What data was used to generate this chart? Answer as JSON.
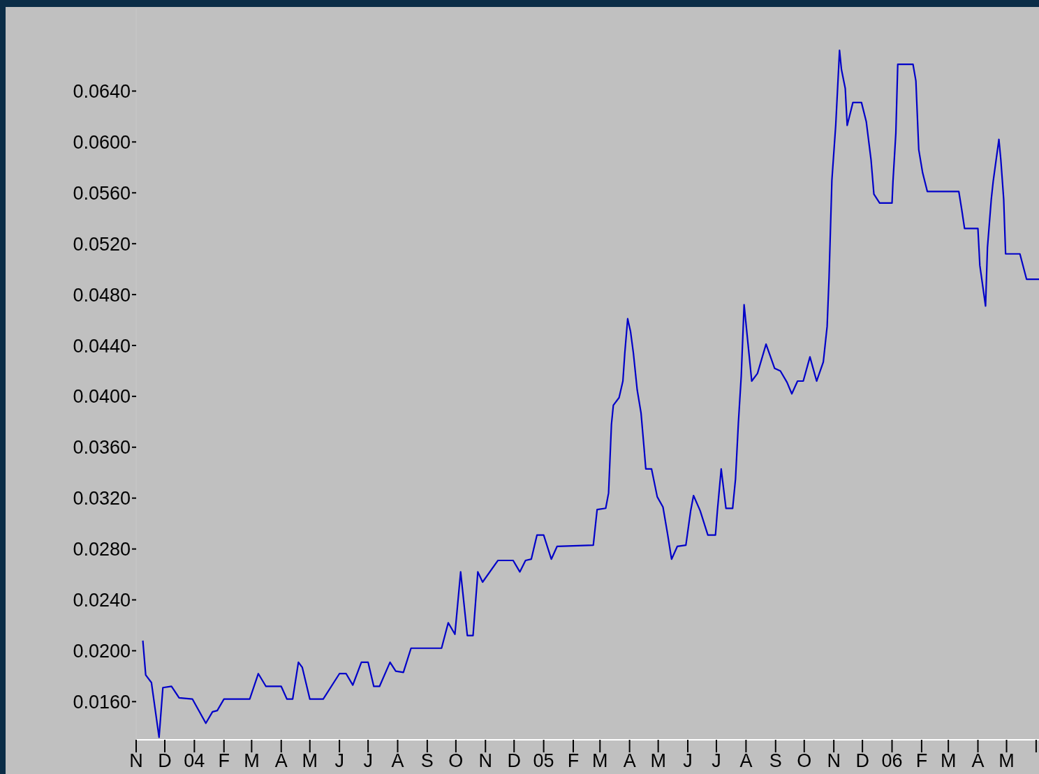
{
  "chart_data": {
    "type": "line",
    "x": [
      "2003-11-08",
      "2003-11-11",
      "2003-11-17",
      "2003-11-25",
      "2003-11-29",
      "2003-12-08",
      "2003-12-16",
      "2003-12-30",
      "2004-01-13",
      "2004-01-20",
      "2004-01-25",
      "2004-02-01",
      "2004-02-28",
      "2004-03-08",
      "2004-03-16",
      "2004-04-01",
      "2004-04-07",
      "2004-04-13",
      "2004-04-19",
      "2004-04-23",
      "2004-05-01",
      "2004-05-15",
      "2004-06-01",
      "2004-06-08",
      "2004-06-15",
      "2004-06-24",
      "2004-07-01",
      "2004-07-07",
      "2004-07-13",
      "2004-07-24",
      "2004-07-30",
      "2004-08-07",
      "2004-08-15",
      "2004-09-16",
      "2004-09-23",
      "2004-09-30",
      "2004-10-06",
      "2004-10-13",
      "2004-10-19",
      "2004-10-24",
      "2004-10-29",
      "2004-11-14",
      "2004-11-30",
      "2004-12-07",
      "2004-12-13",
      "2004-12-19",
      "2004-12-25",
      "2005-01-01",
      "2005-01-09",
      "2005-01-15",
      "2005-02-22",
      "2005-02-26",
      "2005-03-07",
      "2005-03-10",
      "2005-03-13",
      "2005-03-15",
      "2005-03-21",
      "2005-03-25",
      "2005-03-27",
      "2005-03-30",
      "2005-04-02",
      "2005-04-05",
      "2005-04-09",
      "2005-04-13",
      "2005-04-16",
      "2005-04-18",
      "2005-04-24",
      "2005-04-30",
      "2005-05-06",
      "2005-05-11",
      "2005-05-15",
      "2005-05-21",
      "2005-05-30",
      "2005-06-04",
      "2005-06-07",
      "2005-06-14",
      "2005-06-22",
      "2005-06-30",
      "2005-07-02",
      "2005-07-06",
      "2005-07-11",
      "2005-07-18",
      "2005-07-21",
      "2005-07-24",
      "2005-07-27",
      "2005-07-30",
      "2005-08-03",
      "2005-08-07",
      "2005-08-13",
      "2005-08-22",
      "2005-08-31",
      "2005-09-06",
      "2005-09-13",
      "2005-09-18",
      "2005-09-24",
      "2005-09-30",
      "2005-10-07",
      "2005-10-14",
      "2005-10-21",
      "2005-10-25",
      "2005-10-27",
      "2005-10-30",
      "2005-11-03",
      "2005-11-07",
      "2005-11-09",
      "2005-11-13",
      "2005-11-15",
      "2005-11-21",
      "2005-11-30",
      "2005-12-05",
      "2005-12-10",
      "2005-12-13",
      "2005-12-19",
      "2006-01-01",
      "2006-01-02",
      "2006-01-05",
      "2006-01-07",
      "2006-01-23",
      "2006-01-26",
      "2006-01-29",
      "2006-02-02",
      "2006-02-07",
      "2006-03-12",
      "2006-03-15",
      "2006-03-18",
      "2006-04-01",
      "2006-04-03",
      "2006-04-09",
      "2006-04-11",
      "2006-04-15",
      "2006-04-17",
      "2006-04-23",
      "2006-04-25",
      "2006-04-28",
      "2006-04-30",
      "2006-05-15",
      "2006-05-22",
      "2006-06-04"
    ],
    "series": [
      {
        "color": "#0000c8",
        "values": [
          0.0208,
          0.0181,
          0.0175,
          0.0132,
          0.0171,
          0.0172,
          0.0163,
          0.0162,
          0.0143,
          0.0152,
          0.0153,
          0.0162,
          0.0162,
          0.0182,
          0.0172,
          0.0172,
          0.0162,
          0.0162,
          0.0191,
          0.0187,
          0.0162,
          0.0162,
          0.0182,
          0.0182,
          0.0173,
          0.0191,
          0.0191,
          0.0172,
          0.0172,
          0.0191,
          0.0184,
          0.0183,
          0.0202,
          0.0202,
          0.0222,
          0.0213,
          0.0262,
          0.0212,
          0.0212,
          0.0262,
          0.0254,
          0.0271,
          0.0271,
          0.0262,
          0.0271,
          0.0272,
          0.0291,
          0.0291,
          0.0272,
          0.0282,
          0.0283,
          0.0311,
          0.0312,
          0.0324,
          0.0378,
          0.0393,
          0.0399,
          0.0412,
          0.0434,
          0.0461,
          0.0451,
          0.0434,
          0.0405,
          0.0387,
          0.0361,
          0.0343,
          0.0343,
          0.0321,
          0.0313,
          0.0291,
          0.0272,
          0.0282,
          0.0283,
          0.031,
          0.0322,
          0.031,
          0.0291,
          0.0291,
          0.031,
          0.0343,
          0.0312,
          0.0312,
          0.0335,
          0.0379,
          0.0416,
          0.0472,
          0.0442,
          0.0412,
          0.0418,
          0.0441,
          0.0422,
          0.042,
          0.0411,
          0.0402,
          0.0412,
          0.0412,
          0.0431,
          0.0412,
          0.0427,
          0.0455,
          0.0493,
          0.057,
          0.0613,
          0.0672,
          0.0657,
          0.0642,
          0.0613,
          0.0631,
          0.0631,
          0.0616,
          0.0586,
          0.0559,
          0.0552,
          0.0552,
          0.0569,
          0.0607,
          0.0661,
          0.0661,
          0.0648,
          0.0594,
          0.0576,
          0.0561,
          0.0561,
          0.0547,
          0.0532,
          0.0532,
          0.0503,
          0.0471,
          0.0517,
          0.0555,
          0.0569,
          0.0602,
          0.0586,
          0.0555,
          0.0512,
          0.0512,
          0.0492,
          0.0492
        ]
      }
    ],
    "xlim": [
      "2003-11-01",
      "2006-06-04"
    ],
    "xticks": [
      {
        "value": "2003-11-01",
        "label": "N"
      },
      {
        "value": "2003-12-01",
        "label": "D"
      },
      {
        "value": "2004-01-01",
        "label": "04"
      },
      {
        "value": "2004-02-01",
        "label": "F"
      },
      {
        "value": "2004-03-01",
        "label": "M"
      },
      {
        "value": "2004-04-01",
        "label": "A"
      },
      {
        "value": "2004-05-01",
        "label": "M"
      },
      {
        "value": "2004-06-01",
        "label": "J"
      },
      {
        "value": "2004-07-01",
        "label": "J"
      },
      {
        "value": "2004-08-01",
        "label": "A"
      },
      {
        "value": "2004-09-01",
        "label": "S"
      },
      {
        "value": "2004-10-01",
        "label": "O"
      },
      {
        "value": "2004-11-01",
        "label": "N"
      },
      {
        "value": "2004-12-01",
        "label": "D"
      },
      {
        "value": "2005-01-01",
        "label": "05"
      },
      {
        "value": "2005-02-01",
        "label": "F"
      },
      {
        "value": "2005-03-01",
        "label": "M"
      },
      {
        "value": "2005-04-01",
        "label": "A"
      },
      {
        "value": "2005-05-01",
        "label": "M"
      },
      {
        "value": "2005-06-01",
        "label": "J"
      },
      {
        "value": "2005-07-01",
        "label": "J"
      },
      {
        "value": "2005-08-01",
        "label": "A"
      },
      {
        "value": "2005-09-01",
        "label": "S"
      },
      {
        "value": "2005-10-01",
        "label": "O"
      },
      {
        "value": "2005-11-01",
        "label": "N"
      },
      {
        "value": "2005-12-01",
        "label": "D"
      },
      {
        "value": "2006-01-01",
        "label": "06"
      },
      {
        "value": "2006-02-01",
        "label": "F"
      },
      {
        "value": "2006-03-01",
        "label": "M"
      },
      {
        "value": "2006-04-01",
        "label": "A"
      },
      {
        "value": "2006-05-01",
        "label": "M"
      },
      {
        "value": "2006-06-01",
        "label": null
      }
    ],
    "ylim": [
      0.013,
      0.0705
    ],
    "yticks": [
      {
        "value": 0.016,
        "label": "0.0160"
      },
      {
        "value": 0.02,
        "label": "0.0200"
      },
      {
        "value": 0.024,
        "label": "0.0240"
      },
      {
        "value": 0.028,
        "label": "0.0280"
      },
      {
        "value": 0.032,
        "label": "0.0320"
      },
      {
        "value": 0.036,
        "label": "0.0360"
      },
      {
        "value": 0.04,
        "label": "0.0400"
      },
      {
        "value": 0.044,
        "label": "0.0440"
      },
      {
        "value": 0.048,
        "label": "0.0480"
      },
      {
        "value": 0.052,
        "label": "0.0520"
      },
      {
        "value": 0.056,
        "label": "0.0560"
      },
      {
        "value": 0.06,
        "label": "0.0600"
      },
      {
        "value": 0.064,
        "label": "0.0640"
      }
    ],
    "grid": false,
    "legend": false,
    "marker": "none",
    "line_style": "solid"
  }
}
